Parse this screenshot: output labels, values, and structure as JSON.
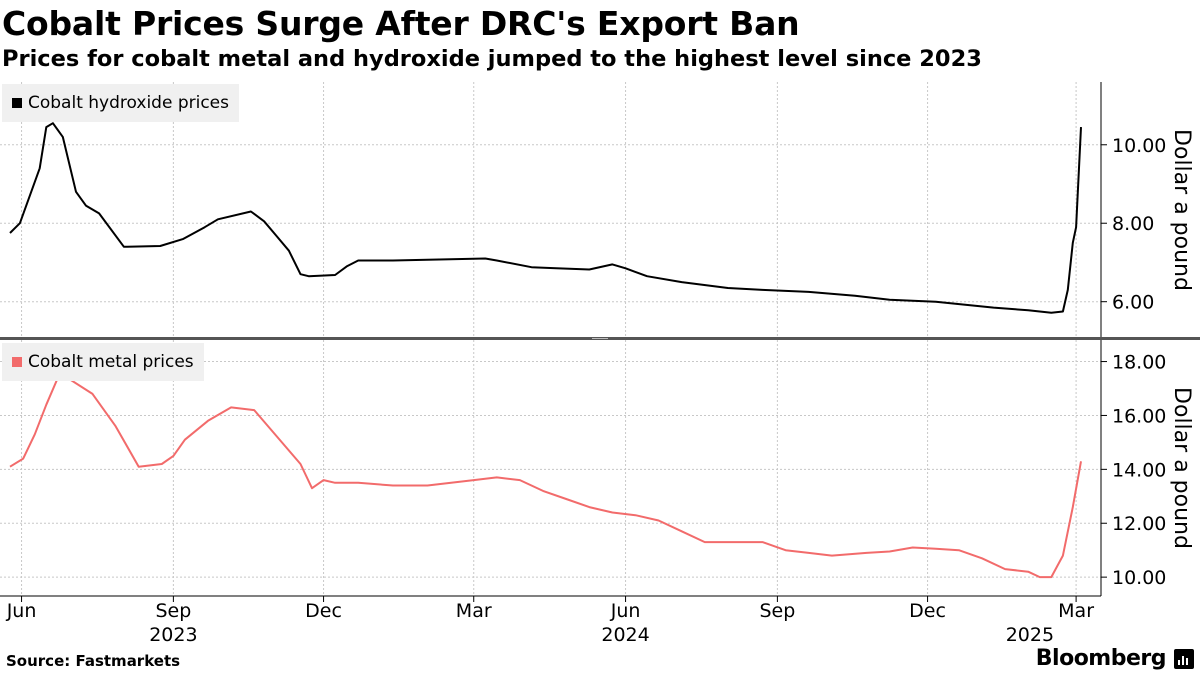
{
  "title": "Cobalt Prices Surge After DRC's Export Ban",
  "subtitle": "Prices for cobalt metal and hydroxide jumped to the highest level since 2023",
  "source": "Source:  Fastmarkets",
  "brand": "Bloomberg",
  "colors": {
    "hydroxide": "#000000",
    "metal": "#f26b6b",
    "grid": "#c8c8c8",
    "divider": "#555555"
  },
  "chart_data": [
    {
      "type": "line",
      "title": "Cobalt hydroxide prices",
      "legend": "Cobalt hydroxide prices",
      "ylabel": "Dollar a pound",
      "yticks": [
        "6.00",
        "8.00",
        "10.00"
      ],
      "ylim": [
        5.1,
        11.6
      ],
      "xlim": [
        "2023-05-25",
        "2025-03-07"
      ],
      "series": [
        {
          "name": "Cobalt hydroxide prices",
          "x": [
            "2023-05-25",
            "2023-05-31",
            "2023-06-12",
            "2023-06-16",
            "2023-06-20",
            "2023-06-26",
            "2023-07-04",
            "2023-07-10",
            "2023-07-18",
            "2023-08-02",
            "2023-08-24",
            "2023-09-07",
            "2023-09-20",
            "2023-09-28",
            "2023-10-18",
            "2023-10-26",
            "2023-11-02",
            "2023-11-10",
            "2023-11-17",
            "2023-11-22",
            "2023-12-08",
            "2023-12-15",
            "2023-12-22",
            "2024-01-12",
            "2024-02-02",
            "2024-03-08",
            "2024-03-15",
            "2024-04-05",
            "2024-04-20",
            "2024-05-10",
            "2024-05-24",
            "2024-06-01",
            "2024-06-14",
            "2024-07-05",
            "2024-08-02",
            "2024-08-23",
            "2024-09-20",
            "2024-10-18",
            "2024-11-08",
            "2024-12-06",
            "2025-01-10",
            "2025-01-31",
            "2025-02-14",
            "2025-02-21",
            "2025-02-24",
            "2025-02-27",
            "2025-03-01",
            "2025-03-04"
          ],
          "y": [
            7.75,
            8.0,
            9.4,
            10.45,
            10.55,
            10.2,
            8.8,
            8.45,
            8.25,
            7.4,
            7.42,
            7.6,
            7.9,
            8.1,
            8.3,
            8.05,
            7.7,
            7.3,
            6.7,
            6.65,
            6.68,
            6.9,
            7.05,
            7.05,
            7.07,
            7.1,
            7.05,
            6.88,
            6.85,
            6.82,
            6.95,
            6.85,
            6.65,
            6.5,
            6.35,
            6.3,
            6.25,
            6.15,
            6.05,
            6.0,
            5.85,
            5.78,
            5.72,
            5.75,
            6.3,
            7.5,
            7.9,
            10.45
          ]
        }
      ]
    },
    {
      "type": "line",
      "title": "Cobalt metal prices",
      "legend": "Cobalt metal prices",
      "ylabel": "Dollar a pound",
      "yticks": [
        "10.00",
        "12.00",
        "14.00",
        "16.00",
        "18.00"
      ],
      "ylim": [
        9.3,
        18.8
      ],
      "xlim": [
        "2023-05-25",
        "2025-03-07"
      ],
      "series": [
        {
          "name": "Cobalt metal prices",
          "x": [
            "2023-05-25",
            "2023-06-02",
            "2023-06-09",
            "2023-06-16",
            "2023-06-23",
            "2023-06-30",
            "2023-07-14",
            "2023-07-28",
            "2023-08-11",
            "2023-08-25",
            "2023-09-01",
            "2023-09-08",
            "2023-09-22",
            "2023-10-06",
            "2023-10-20",
            "2023-11-03",
            "2023-11-17",
            "2023-11-24",
            "2023-12-01",
            "2023-12-08",
            "2023-12-22",
            "2024-01-12",
            "2024-02-02",
            "2024-03-01",
            "2024-03-15",
            "2024-03-29",
            "2024-04-12",
            "2024-04-26",
            "2024-05-10",
            "2024-05-24",
            "2024-06-07",
            "2024-06-21",
            "2024-07-05",
            "2024-07-19",
            "2024-08-02",
            "2024-08-23",
            "2024-09-06",
            "2024-09-20",
            "2024-10-04",
            "2024-10-25",
            "2024-11-08",
            "2024-11-22",
            "2024-12-06",
            "2024-12-20",
            "2025-01-03",
            "2025-01-17",
            "2025-01-31",
            "2025-02-07",
            "2025-02-14",
            "2025-02-21",
            "2025-02-27",
            "2025-03-04"
          ],
          "y": [
            14.1,
            14.4,
            15.3,
            16.4,
            17.4,
            17.35,
            16.8,
            15.6,
            14.1,
            14.2,
            14.5,
            15.1,
            15.8,
            16.3,
            16.2,
            15.2,
            14.2,
            13.3,
            13.6,
            13.5,
            13.5,
            13.4,
            13.4,
            13.6,
            13.7,
            13.6,
            13.2,
            12.9,
            12.6,
            12.4,
            12.3,
            12.1,
            11.7,
            11.3,
            11.3,
            11.3,
            11.0,
            10.9,
            10.8,
            10.9,
            10.95,
            11.1,
            11.05,
            11.0,
            10.7,
            10.3,
            10.2,
            10.0,
            10.0,
            10.8,
            12.6,
            14.3
          ]
        }
      ]
    }
  ],
  "x_axis": {
    "months": [
      {
        "label": "Jun",
        "date": "2023-06-01"
      },
      {
        "label": "Sep",
        "date": "2023-09-01"
      },
      {
        "label": "Dec",
        "date": "2023-12-01"
      },
      {
        "label": "Mar",
        "date": "2024-03-01"
      },
      {
        "label": "Jun",
        "date": "2024-06-01"
      },
      {
        "label": "Sep",
        "date": "2024-09-01"
      },
      {
        "label": "Dec",
        "date": "2024-12-01"
      },
      {
        "label": "Mar",
        "date": "2025-03-01"
      }
    ],
    "years": [
      {
        "label": "2023",
        "date": "2023-09-01"
      },
      {
        "label": "2024",
        "date": "2024-06-01"
      },
      {
        "label": "2025",
        "date": "2025-02-01"
      }
    ]
  }
}
